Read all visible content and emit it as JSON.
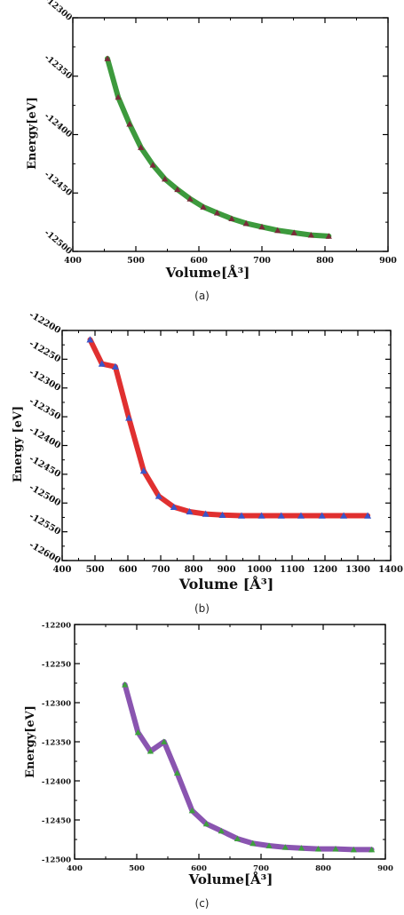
{
  "chart_data": [
    {
      "type": "line",
      "caption": "(a)",
      "xlabel": "Volume[Å³]",
      "ylabel": "Energy[eV]",
      "xlim": [
        400,
        900
      ],
      "ylim": [
        -12500,
        -12300
      ],
      "xticks": [
        400,
        500,
        600,
        700,
        800,
        900
      ],
      "yticks": [
        -12500,
        -12450,
        -12400,
        -12350,
        -12300
      ],
      "xtick_labels": [
        "400",
        "500",
        "600",
        "700",
        "800",
        "900"
      ],
      "ytick_labels": [
        "-12500",
        "-12450",
        "-12400",
        "-12350",
        "-12300"
      ],
      "grid": false,
      "line_color": "#3d9a3d",
      "marker": "triangle",
      "marker_color": "#7a2a3a",
      "series": [
        {
          "x": [
            455,
            472,
            490,
            508,
            527,
            546,
            566,
            586,
            607,
            629,
            652,
            675,
            700,
            725,
            751,
            778,
            806
          ],
          "y": [
            -12335,
            -12368,
            -12391,
            -12411,
            -12426,
            -12438,
            -12447,
            -12455,
            -12462,
            -12467,
            -12472,
            -12476,
            -12479,
            -12482,
            -12484,
            -12486,
            -12487
          ]
        }
      ]
    },
    {
      "type": "line",
      "caption": "(b)",
      "xlabel": "Volume [Å³]",
      "ylabel": "Energy [eV]",
      "xlim": [
        400,
        1400
      ],
      "ylim": [
        -12600,
        -12200
      ],
      "xticks": [
        400,
        500,
        600,
        700,
        800,
        900,
        1000,
        1100,
        1200,
        1300,
        1400
      ],
      "yticks": [
        -12600,
        -12550,
        -12500,
        -12450,
        -12400,
        -12350,
        -12300,
        -12250,
        -12200
      ],
      "xtick_labels": [
        "400",
        "500",
        "600",
        "700",
        "800",
        "900",
        "1000",
        "1100",
        "1200",
        "1300",
        "1400"
      ],
      "ytick_labels": [
        "-12600",
        "-12550",
        "-12500",
        "-12450",
        "-12400",
        "-12350",
        "-12300",
        "-12250",
        "-12200"
      ],
      "grid": false,
      "line_color": "#e03030",
      "marker": "triangle",
      "marker_color": "#3a55c8",
      "series": [
        {
          "x": [
            485,
            521,
            562,
            603,
            648,
            694,
            740,
            788,
            837,
            888,
            946,
            1007,
            1067,
            1127,
            1191,
            1257,
            1330
          ],
          "y": [
            -12216,
            -12258,
            -12263,
            -12352,
            -12444,
            -12488,
            -12507,
            -12515,
            -12519,
            -12521,
            -12522,
            -12522,
            -12522,
            -12522,
            -12522,
            -12522,
            -12522
          ]
        }
      ]
    },
    {
      "type": "line",
      "caption": "(c)",
      "xlabel": "Volume[Å³]",
      "ylabel": "Energy[eV]",
      "xlim": [
        400,
        900
      ],
      "ylim": [
        -12500,
        -12200
      ],
      "xticks": [
        400,
        500,
        600,
        700,
        800,
        900
      ],
      "yticks": [
        -12500,
        -12450,
        -12400,
        -12350,
        -12300,
        -12250,
        -12200
      ],
      "xtick_labels": [
        "400",
        "500",
        "600",
        "700",
        "800",
        "900"
      ],
      "ytick_labels": [
        "-12500",
        "-12450",
        "-12400",
        "-12350",
        "-12300",
        "-12250",
        "-12200"
      ],
      "grid": false,
      "line_color": "#8a55b0",
      "marker": "triangle",
      "marker_color": "#3da03d",
      "series": [
        {
          "x": [
            481,
            502,
            522,
            544,
            565,
            589,
            612,
            636,
            662,
            687,
            713,
            739,
            765,
            792,
            820,
            849,
            878
          ],
          "y": [
            -12277,
            -12338,
            -12362,
            -12350,
            -12390,
            -12438,
            -12455,
            -12464,
            -12474,
            -12480,
            -12483,
            -12485,
            -12486,
            -12487,
            -12487,
            -12488,
            -12488
          ]
        }
      ]
    }
  ]
}
